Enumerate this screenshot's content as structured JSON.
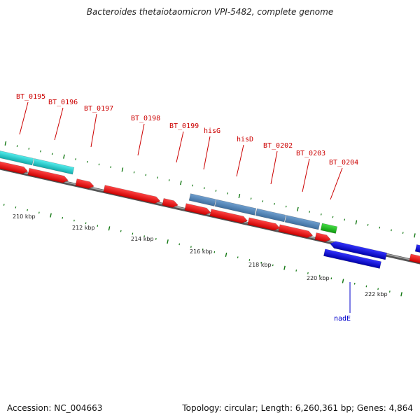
{
  "title": "Bacteroides thetaiotaomicron VPI-5482, complete genome",
  "footer": {
    "accession": "Accession: NC_004663",
    "genome_info": "Topology: circular; Length: 6,260,361 bp; Genes: 4,864"
  },
  "tick_labels": [
    "210 kbp",
    "212 kbp",
    "214 kbp",
    "216 kbp",
    "218 kbp",
    "220 kbp",
    "222 kbp"
  ],
  "gene_labels": [
    {
      "name": "BT_0195",
      "color": "#cc0000"
    },
    {
      "name": "BT_0196",
      "color": "#cc0000"
    },
    {
      "name": "BT_0197",
      "color": "#cc0000"
    },
    {
      "name": "BT_0198",
      "color": "#cc0000"
    },
    {
      "name": "BT_0199",
      "color": "#cc0000"
    },
    {
      "name": "hisG",
      "color": "#cc0000"
    },
    {
      "name": "hisD",
      "color": "#cc0000"
    },
    {
      "name": "BT_0202",
      "color": "#cc0000"
    },
    {
      "name": "BT_0203",
      "color": "#cc0000"
    },
    {
      "name": "BT_0204",
      "color": "#cc0000"
    },
    {
      "name": "nadE",
      "color": "#0000cc"
    }
  ],
  "colors": {
    "cds_forward": "#ee0000",
    "cds_reverse": "#0000dd",
    "cog_cyan": "#22cccc",
    "cog_steelblue": "#4f7fb0",
    "cog_green": "#22bb22",
    "backbone": "#888888",
    "tick_green": "#117711"
  }
}
